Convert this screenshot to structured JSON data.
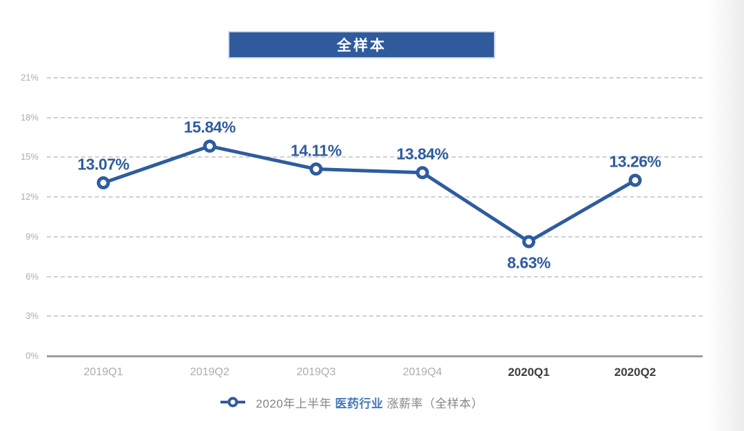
{
  "colors": {
    "line": "#2e5c9e",
    "marker_fill": "#ffffff",
    "data_label": "#2e5c9e",
    "banner_bg": "#2f5b9d",
    "banner_border": "#ccd6ea",
    "grid": "#cfcfcf",
    "axis_line": "#9b9b9b",
    "tick_text": "#a9adb3",
    "x_label_current": "#3a3d42",
    "legend_text": "#82868b",
    "legend_highlight": "#4378ba"
  },
  "chart_data": {
    "type": "line",
    "title": "全样本",
    "categories": [
      "2019Q1",
      "2019Q2",
      "2019Q3",
      "2019Q4",
      "2020Q1",
      "2020Q2"
    ],
    "values": [
      13.07,
      15.84,
      14.11,
      13.84,
      8.63,
      13.26
    ],
    "data_labels": [
      "13.07%",
      "15.84%",
      "14.11%",
      "13.84%",
      "8.63%",
      "13.26%"
    ],
    "label_below_indices": [
      4
    ],
    "bold_x_indices": [
      4,
      5
    ],
    "xlabel": "",
    "ylabel": "",
    "ylim": [
      0,
      21
    ],
    "yticks": [
      0,
      3,
      6,
      9,
      12,
      15,
      18,
      21
    ],
    "ytick_labels": [
      "0%",
      "3%",
      "6%",
      "9%",
      "12%",
      "15%",
      "18%",
      "21%"
    ],
    "grid": "horizontal-dashed",
    "legend_position": "bottom",
    "legend": {
      "prefix": "2020年上半年 ",
      "highlight": "医药行业",
      "suffix": " 涨薪率（全样本）"
    }
  }
}
